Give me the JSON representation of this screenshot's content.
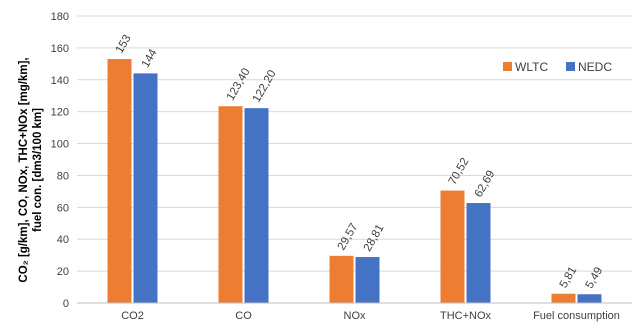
{
  "chart_data": {
    "type": "bar",
    "categories": [
      "CO2",
      "CO",
      "NOx",
      "THC+NOx",
      "Fuel consumption"
    ],
    "series": [
      {
        "name": "WLTC",
        "values": [
          153,
          123.4,
          29.57,
          70.52,
          5.81
        ],
        "labels": [
          "153",
          "123,40",
          "29,57",
          "70,52",
          "5,81"
        ],
        "color": "#ED7D31"
      },
      {
        "name": "NEDC",
        "values": [
          144,
          122.2,
          28.81,
          62.69,
          5.49
        ],
        "labels": [
          "144",
          "122,20",
          "28,81",
          "62,69",
          "5,49"
        ],
        "color": "#4472C4"
      }
    ],
    "ylabel_lines": [
      "CO₂ [g/km], CO, NOx, THC+NOx [mg/km],",
      "fuel con. [dm3/100 km]"
    ],
    "ylim": [
      0,
      180
    ],
    "yticks": [
      0,
      20,
      40,
      60,
      80,
      100,
      120,
      140,
      160,
      180
    ],
    "grid": true,
    "gridline_color": "#d9d9d9",
    "legend_position": "right"
  }
}
